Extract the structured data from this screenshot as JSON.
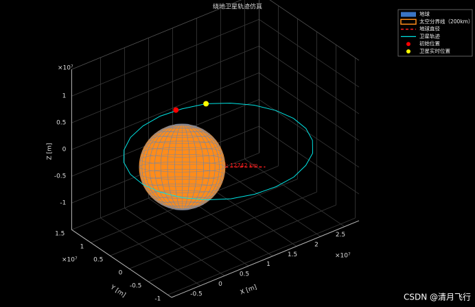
{
  "chart_data": {
    "type": "line3d",
    "title": "绕地卫星轨迹仿真",
    "xlabel": "X [m]",
    "ylabel": "Y [m]",
    "zlabel": "Z [m]",
    "x_exponent": "×10⁷",
    "y_exponent": "×10⁷",
    "z_exponent": "×10⁷",
    "xlim": [
      -1.1,
      2.8
    ],
    "ylim": [
      -1.1,
      1.5
    ],
    "zlim": [
      -1.5,
      1.5
    ],
    "xticks": [
      -0.5,
      0,
      0.5,
      1,
      1.5,
      2,
      2.5
    ],
    "yticks": [
      -1,
      -0.5,
      0,
      0.5,
      1,
      1.5
    ],
    "zticks": [
      -1,
      -0.5,
      0,
      0.5,
      1
    ],
    "grid": true,
    "legend": "top-right",
    "annotation": "直径: 12742 km",
    "series": [
      {
        "name": "地球",
        "kind": "sphere",
        "color": "#3a75c4",
        "center": [
          0,
          0,
          0
        ],
        "radius": 0.6371
      },
      {
        "name": "太空分界线（200km）",
        "kind": "sphere",
        "color": "#ff8c1a",
        "center": [
          0,
          0,
          0
        ],
        "radius": 0.6571
      },
      {
        "name": "地球直径",
        "kind": "diameter",
        "color": "#ff2020"
      },
      {
        "name": "卫星轨迹",
        "kind": "line",
        "color": "#00e5e5",
        "x": [
          2.2,
          2.24,
          2.18,
          2.02,
          1.78,
          1.47,
          1.12,
          0.73,
          0.35,
          0.0,
          -0.3,
          -0.53,
          -0.67,
          -0.71,
          -0.65,
          -0.49,
          -0.25,
          0.06,
          0.42,
          0.8,
          1.18,
          1.53,
          1.83,
          2.06
        ],
        "y": [
          -0.64,
          -0.42,
          -0.17,
          0.09,
          0.35,
          0.58,
          0.78,
          0.92,
          1.01,
          1.02,
          0.97,
          0.85,
          0.68,
          0.46,
          0.21,
          -0.05,
          -0.31,
          -0.55,
          -0.74,
          -0.89,
          -0.97,
          -0.99,
          -0.93,
          -0.82
        ],
        "z": [
          0,
          0.1,
          0.19,
          0.27,
          0.33,
          0.37,
          0.39,
          0.37,
          0.33,
          0.27,
          0.19,
          0.1,
          0,
          -0.1,
          -0.19,
          -0.27,
          -0.33,
          -0.37,
          -0.39,
          -0.37,
          -0.33,
          -0.27,
          -0.19,
          -0.1
        ]
      },
      {
        "name": "初始位置",
        "kind": "point",
        "color": "#ff0000",
        "x": 0.63,
        "y": 0.95,
        "z": 0.37
      },
      {
        "name": "卫星实时位置",
        "kind": "point",
        "color": "#ffff00",
        "x": 1.12,
        "y": 0.78,
        "z": 0.39
      }
    ]
  },
  "watermark": "CSDN @清月飞行"
}
